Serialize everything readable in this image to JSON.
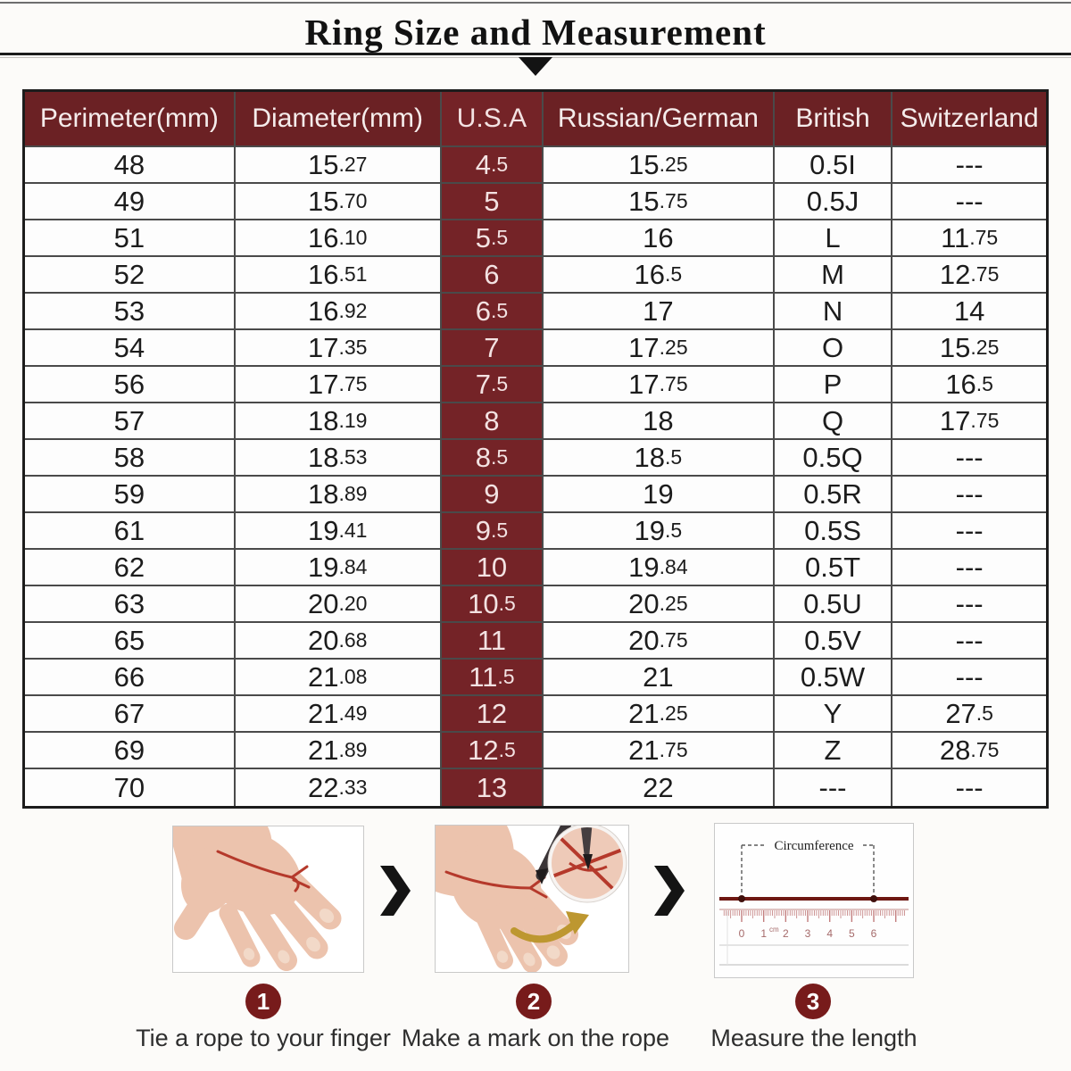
{
  "header": {
    "title": "Ring Size and Measurement"
  },
  "table": {
    "columns": [
      "Perimeter(mm)",
      "Diameter(mm)",
      "U.S.A",
      "Russian/German",
      "British",
      "Switzerland"
    ],
    "rows": [
      [
        "48",
        "15.27",
        "4.5",
        "15.25",
        "0.5I",
        "---"
      ],
      [
        "49",
        "15.70",
        "5",
        "15.75",
        "0.5J",
        "---"
      ],
      [
        "51",
        "16.10",
        "5.5",
        "16",
        "L",
        "11.75"
      ],
      [
        "52",
        "16.51",
        "6",
        "16.5",
        "M",
        "12.75"
      ],
      [
        "53",
        "16.92",
        "6.5",
        "17",
        "N",
        "14"
      ],
      [
        "54",
        "17.35",
        "7",
        "17.25",
        "O",
        "15.25"
      ],
      [
        "56",
        "17.75",
        "7.5",
        "17.75",
        "P",
        "16.5"
      ],
      [
        "57",
        "18.19",
        "8",
        "18",
        "Q",
        "17.75"
      ],
      [
        "58",
        "18.53",
        "8.5",
        "18.5",
        "0.5Q",
        "---"
      ],
      [
        "59",
        "18.89",
        "9",
        "19",
        "0.5R",
        "---"
      ],
      [
        "61",
        "19.41",
        "9.5",
        "19.5",
        "0.5S",
        "---"
      ],
      [
        "62",
        "19.84",
        "10",
        "19.84",
        "0.5T",
        "---"
      ],
      [
        "63",
        "20.20",
        "10.5",
        "20.25",
        "0.5U",
        "---"
      ],
      [
        "65",
        "20.68",
        "11",
        "20.75",
        "0.5V",
        "---"
      ],
      [
        "66",
        "21.08",
        "11.5",
        "21",
        "0.5W",
        "---"
      ],
      [
        "67",
        "21.49",
        "12",
        "21.25",
        "Y",
        "27.5"
      ],
      [
        "69",
        "21.89",
        "12.5",
        "21.75",
        "Z",
        "28.75"
      ],
      [
        "70",
        "22.33",
        "13",
        "22",
        "---",
        "---"
      ]
    ]
  },
  "steps": [
    {
      "number": "1",
      "caption": "Tie a rope to your finger"
    },
    {
      "number": "2",
      "caption": "Make a mark on the rope"
    },
    {
      "number": "3",
      "caption": "Measure the length"
    }
  ],
  "figure3": {
    "label": "Circumference",
    "unit": "cm",
    "ticks": [
      "0",
      "1",
      "2",
      "3",
      "4",
      "5",
      "6"
    ]
  },
  "colors": {
    "header_maroon": "#6b2124",
    "usa_cell_maroon": "#742327",
    "step_circle": "#771b1b",
    "rope_red": "#b5392b",
    "gold_arrow": "#bd9730"
  }
}
